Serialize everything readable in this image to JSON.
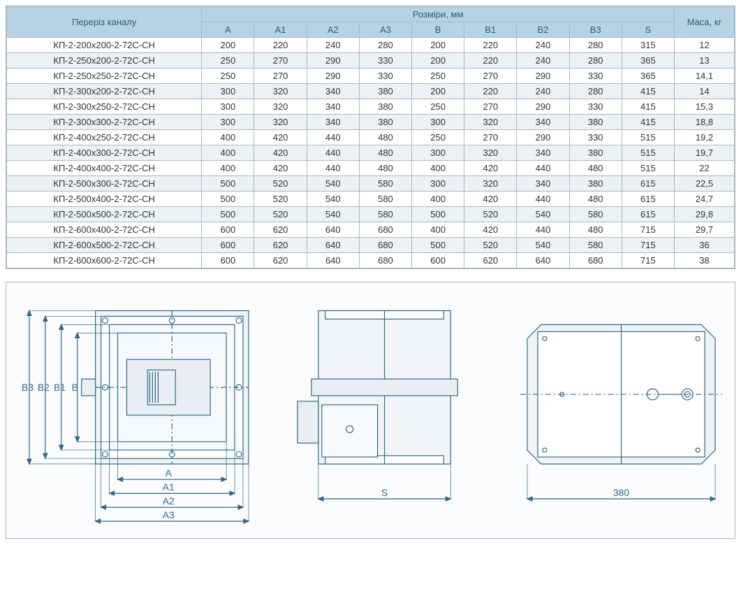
{
  "table": {
    "header": {
      "name": "Переріз каналу",
      "dims_group": "Розміри, мм",
      "dims": [
        "A",
        "A1",
        "A2",
        "A3",
        "B",
        "B1",
        "B2",
        "B3",
        "S"
      ],
      "mass": "Маса, кг"
    },
    "rows": [
      {
        "name": "КП-2-200х200-2-72С-СН",
        "v": [
          "200",
          "220",
          "240",
          "280",
          "200",
          "220",
          "240",
          "280",
          "315"
        ],
        "m": "12"
      },
      {
        "name": "КП-2-250х200-2-72С-СН",
        "v": [
          "250",
          "270",
          "290",
          "330",
          "200",
          "220",
          "240",
          "280",
          "365"
        ],
        "m": "13"
      },
      {
        "name": "КП-2-250х250-2-72С-СН",
        "v": [
          "250",
          "270",
          "290",
          "330",
          "250",
          "270",
          "290",
          "330",
          "365"
        ],
        "m": "14,1"
      },
      {
        "name": "КП-2-300х200-2-72С-СН",
        "v": [
          "300",
          "320",
          "340",
          "380",
          "200",
          "220",
          "240",
          "280",
          "415"
        ],
        "m": "14"
      },
      {
        "name": "КП-2-300х250-2-72С-СН",
        "v": [
          "300",
          "320",
          "340",
          "380",
          "250",
          "270",
          "290",
          "330",
          "415"
        ],
        "m": "15,3"
      },
      {
        "name": "КП-2-300х300-2-72С-СН",
        "v": [
          "300",
          "320",
          "340",
          "380",
          "300",
          "320",
          "340",
          "380",
          "415"
        ],
        "m": "18,8"
      },
      {
        "name": "КП-2-400х250-2-72С-СН",
        "v": [
          "400",
          "420",
          "440",
          "480",
          "250",
          "270",
          "290",
          "330",
          "515"
        ],
        "m": "19,2"
      },
      {
        "name": "КП-2-400х300-2-72С-СН",
        "v": [
          "400",
          "420",
          "440",
          "480",
          "300",
          "320",
          "340",
          "380",
          "515"
        ],
        "m": "19,7"
      },
      {
        "name": "КП-2-400х400-2-72С-СН",
        "v": [
          "400",
          "420",
          "440",
          "480",
          "400",
          "420",
          "440",
          "480",
          "515"
        ],
        "m": "22"
      },
      {
        "name": "КП-2-500х300-2-72С-СН",
        "v": [
          "500",
          "520",
          "540",
          "580",
          "300",
          "320",
          "340",
          "380",
          "615"
        ],
        "m": "22,5"
      },
      {
        "name": "КП-2-500х400-2-72С-СН",
        "v": [
          "500",
          "520",
          "540",
          "580",
          "400",
          "420",
          "440",
          "480",
          "615"
        ],
        "m": "24,7"
      },
      {
        "name": "КП-2-500х500-2-72С-СН",
        "v": [
          "500",
          "520",
          "540",
          "580",
          "500",
          "520",
          "540",
          "580",
          "615"
        ],
        "m": "29,8"
      },
      {
        "name": "КП-2-600х400-2-72С-СН",
        "v": [
          "600",
          "620",
          "640",
          "680",
          "400",
          "420",
          "440",
          "480",
          "715"
        ],
        "m": "29,7"
      },
      {
        "name": "КП-2-600х500-2-72С-СН",
        "v": [
          "600",
          "620",
          "640",
          "680",
          "500",
          "520",
          "540",
          "580",
          "715"
        ],
        "m": "36"
      },
      {
        "name": "КП-2-600х600-2-72С-СН",
        "v": [
          "600",
          "620",
          "640",
          "680",
          "600",
          "620",
          "640",
          "680",
          "715"
        ],
        "m": "38"
      }
    ],
    "colors": {
      "header_bg": "#b6d3e1",
      "header_text": "#2a5d7a",
      "row_even_bg": "#eaf2f6",
      "row_odd_bg": "#ffffff",
      "border": "#a8b8c8"
    },
    "font_size": 13
  },
  "diagram": {
    "labels": {
      "B3": "B3",
      "B2": "B2",
      "B1": "B1",
      "B": "B",
      "A": "A",
      "A1": "A1",
      "A2": "A2",
      "A3": "A3",
      "S": "S",
      "right_dim": "380"
    },
    "colors": {
      "wrap_border": "#a8b8c8",
      "wrap_bg": "#fafcfd",
      "stroke": "#2e6a8e",
      "fill": "#e8eef2",
      "text": "#2e6a8e",
      "centerline": "#5a7a90"
    },
    "line_width": 1.2,
    "font_size": 14
  }
}
